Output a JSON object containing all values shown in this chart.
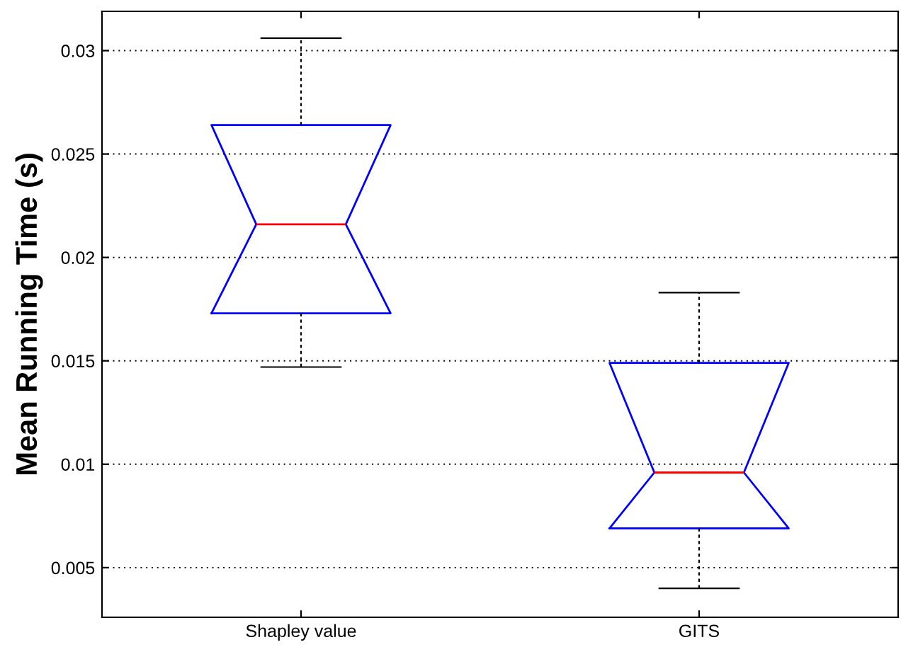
{
  "chart_data": {
    "type": "box",
    "ylabel": "Mean Running Time (s)",
    "categories": [
      "Shapley value",
      "GITS"
    ],
    "boxes": [
      {
        "low": 0.0147,
        "q1": 0.0173,
        "median": 0.0216,
        "q3": 0.0264,
        "high": 0.0306
      },
      {
        "low": 0.004,
        "q1": 0.0069,
        "median": 0.0096,
        "q3": 0.0149,
        "high": 0.0183
      }
    ],
    "color": "#0000ff",
    "ylim": [
      0.0026,
      0.0319
    ],
    "yticks": [
      0.005,
      0.01,
      0.015,
      0.02,
      0.025,
      0.03
    ],
    "grid": "y"
  }
}
